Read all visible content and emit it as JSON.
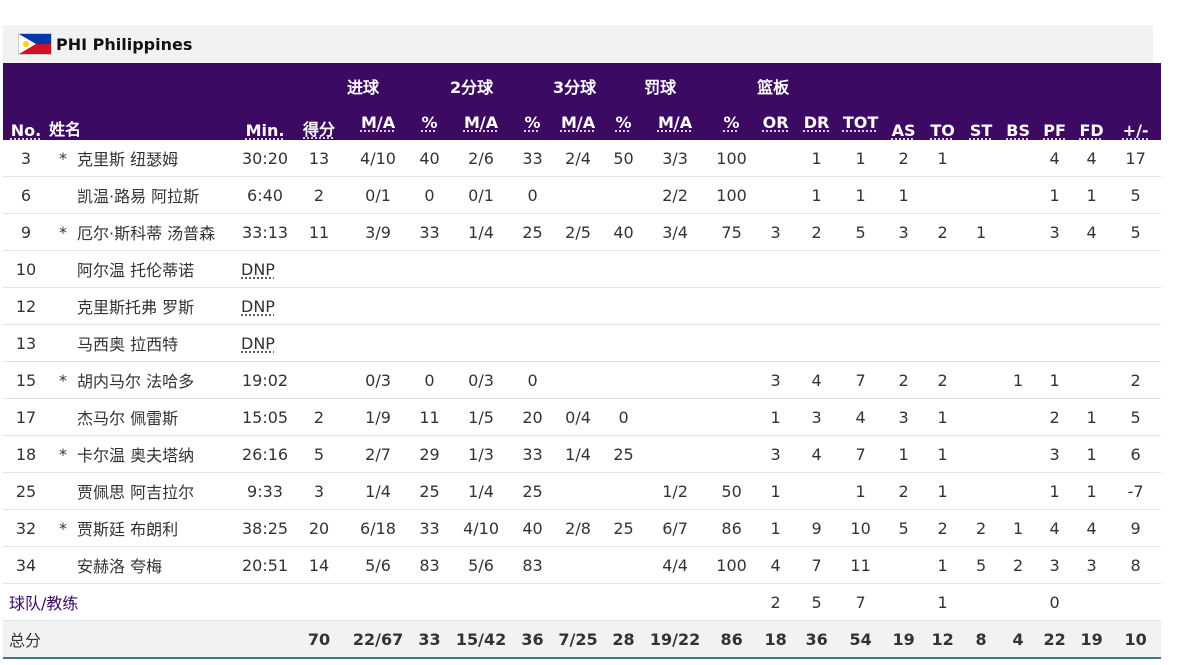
{
  "team": {
    "code": "PHI",
    "name": "Philippines",
    "label": "PHI Philippines",
    "flag_icon": "philippines-flag-icon"
  },
  "headers": {
    "no": "No.",
    "name": "姓名",
    "min": "Min.",
    "pts": "得分",
    "fg_group": "进球",
    "two_group": "2分球",
    "three_group": "3分球",
    "ft_group": "罚球",
    "reb_group": "篮板",
    "ma": "M/A",
    "pct": "%",
    "or": "OR",
    "dr": "DR",
    "tot": "TOT",
    "as": "AS",
    "to": "TO",
    "st": "ST",
    "bs": "BS",
    "pf": "PF",
    "fd": "FD",
    "pm": "+/-"
  },
  "players": [
    {
      "no": "3",
      "starter": "*",
      "name": "克里斯 纽瑟姆",
      "min": "30:20",
      "pts": "13",
      "fg_ma": "4/10",
      "fg_pct": "40",
      "two_ma": "2/6",
      "two_pct": "33",
      "three_ma": "2/4",
      "three_pct": "50",
      "ft_ma": "3/3",
      "ft_pct": "100",
      "or": "",
      "dr": "1",
      "tot": "1",
      "as": "2",
      "to": "1",
      "st": "",
      "bs": "",
      "pf": "4",
      "fd": "4",
      "pm": "17"
    },
    {
      "no": "6",
      "starter": "",
      "name": "凯温·路易 阿拉斯",
      "min": "6:40",
      "pts": "2",
      "fg_ma": "0/1",
      "fg_pct": "0",
      "two_ma": "0/1",
      "two_pct": "0",
      "three_ma": "",
      "three_pct": "",
      "ft_ma": "2/2",
      "ft_pct": "100",
      "or": "",
      "dr": "1",
      "tot": "1",
      "as": "1",
      "to": "",
      "st": "",
      "bs": "",
      "pf": "1",
      "fd": "1",
      "pm": "5"
    },
    {
      "no": "9",
      "starter": "*",
      "name": "厄尔·斯科蒂 汤普森",
      "min": "33:13",
      "pts": "11",
      "fg_ma": "3/9",
      "fg_pct": "33",
      "two_ma": "1/4",
      "two_pct": "25",
      "three_ma": "2/5",
      "three_pct": "40",
      "ft_ma": "3/4",
      "ft_pct": "75",
      "or": "3",
      "dr": "2",
      "tot": "5",
      "as": "3",
      "to": "2",
      "st": "1",
      "bs": "",
      "pf": "3",
      "fd": "4",
      "pm": "5"
    },
    {
      "no": "10",
      "starter": "",
      "name": "阿尔温 托伦蒂诺",
      "min": "DNP",
      "dnp": true
    },
    {
      "no": "12",
      "starter": "",
      "name": "克里斯托弗 罗斯",
      "min": "DNP",
      "dnp": true
    },
    {
      "no": "13",
      "starter": "",
      "name": "马西奥 拉西特",
      "min": "DNP",
      "dnp": true
    },
    {
      "no": "15",
      "starter": "*",
      "name": "胡内马尔 法哈多",
      "min": "19:02",
      "pts": "",
      "fg_ma": "0/3",
      "fg_pct": "0",
      "two_ma": "0/3",
      "two_pct": "0",
      "three_ma": "",
      "three_pct": "",
      "ft_ma": "",
      "ft_pct": "",
      "or": "3",
      "dr": "4",
      "tot": "7",
      "as": "2",
      "to": "2",
      "st": "",
      "bs": "1",
      "pf": "1",
      "fd": "",
      "pm": "2"
    },
    {
      "no": "17",
      "starter": "",
      "name": "杰马尔 佩雷斯",
      "min": "15:05",
      "pts": "2",
      "fg_ma": "1/9",
      "fg_pct": "11",
      "two_ma": "1/5",
      "two_pct": "20",
      "three_ma": "0/4",
      "three_pct": "0",
      "ft_ma": "",
      "ft_pct": "",
      "or": "1",
      "dr": "3",
      "tot": "4",
      "as": "3",
      "to": "1",
      "st": "",
      "bs": "",
      "pf": "2",
      "fd": "1",
      "pm": "5"
    },
    {
      "no": "18",
      "starter": "*",
      "name": "卡尔温 奥夫塔纳",
      "min": "26:16",
      "pts": "5",
      "fg_ma": "2/7",
      "fg_pct": "29",
      "two_ma": "1/3",
      "two_pct": "33",
      "three_ma": "1/4",
      "three_pct": "25",
      "ft_ma": "",
      "ft_pct": "",
      "or": "3",
      "dr": "4",
      "tot": "7",
      "as": "1",
      "to": "1",
      "st": "",
      "bs": "",
      "pf": "3",
      "fd": "1",
      "pm": "6"
    },
    {
      "no": "25",
      "starter": "",
      "name": "贾佩思 阿吉拉尔",
      "min": "9:33",
      "pts": "3",
      "fg_ma": "1/4",
      "fg_pct": "25",
      "two_ma": "1/4",
      "two_pct": "25",
      "three_ma": "",
      "three_pct": "",
      "ft_ma": "1/2",
      "ft_pct": "50",
      "or": "1",
      "dr": "",
      "tot": "1",
      "as": "2",
      "to": "1",
      "st": "",
      "bs": "",
      "pf": "1",
      "fd": "1",
      "pm": "-7"
    },
    {
      "no": "32",
      "starter": "*",
      "name": "贾斯廷 布朗利",
      "min": "38:25",
      "pts": "20",
      "fg_ma": "6/18",
      "fg_pct": "33",
      "two_ma": "4/10",
      "two_pct": "40",
      "three_ma": "2/8",
      "three_pct": "25",
      "ft_ma": "6/7",
      "ft_pct": "86",
      "or": "1",
      "dr": "9",
      "tot": "10",
      "as": "5",
      "to": "2",
      "st": "2",
      "bs": "1",
      "pf": "4",
      "fd": "4",
      "pm": "9"
    },
    {
      "no": "34",
      "starter": "",
      "name": "安赫洛 夸梅",
      "min": "20:51",
      "pts": "14",
      "fg_ma": "5/6",
      "fg_pct": "83",
      "two_ma": "5/6",
      "two_pct": "83",
      "three_ma": "",
      "three_pct": "",
      "ft_ma": "4/4",
      "ft_pct": "100",
      "or": "4",
      "dr": "7",
      "tot": "11",
      "as": "",
      "to": "1",
      "st": "5",
      "bs": "2",
      "pf": "3",
      "fd": "3",
      "pm": "8"
    }
  ],
  "team_row": {
    "label": "球队/教练",
    "or": "2",
    "dr": "5",
    "tot": "7",
    "to": "1",
    "pf": "0"
  },
  "totals": {
    "label": "总分",
    "pts": "70",
    "fg_ma": "22/67",
    "fg_pct": "33",
    "two_ma": "15/42",
    "two_pct": "36",
    "three_ma": "7/25",
    "three_pct": "28",
    "ft_ma": "19/22",
    "ft_pct": "86",
    "or": "18",
    "dr": "36",
    "tot": "54",
    "as": "19",
    "to": "12",
    "st": "8",
    "bs": "4",
    "pf": "22",
    "fd": "19",
    "pm": "10"
  },
  "colors": {
    "header_bg": "#3d0a63",
    "team_bar_bg": "#f2f2f2",
    "total_border": "#3a7a8c"
  }
}
